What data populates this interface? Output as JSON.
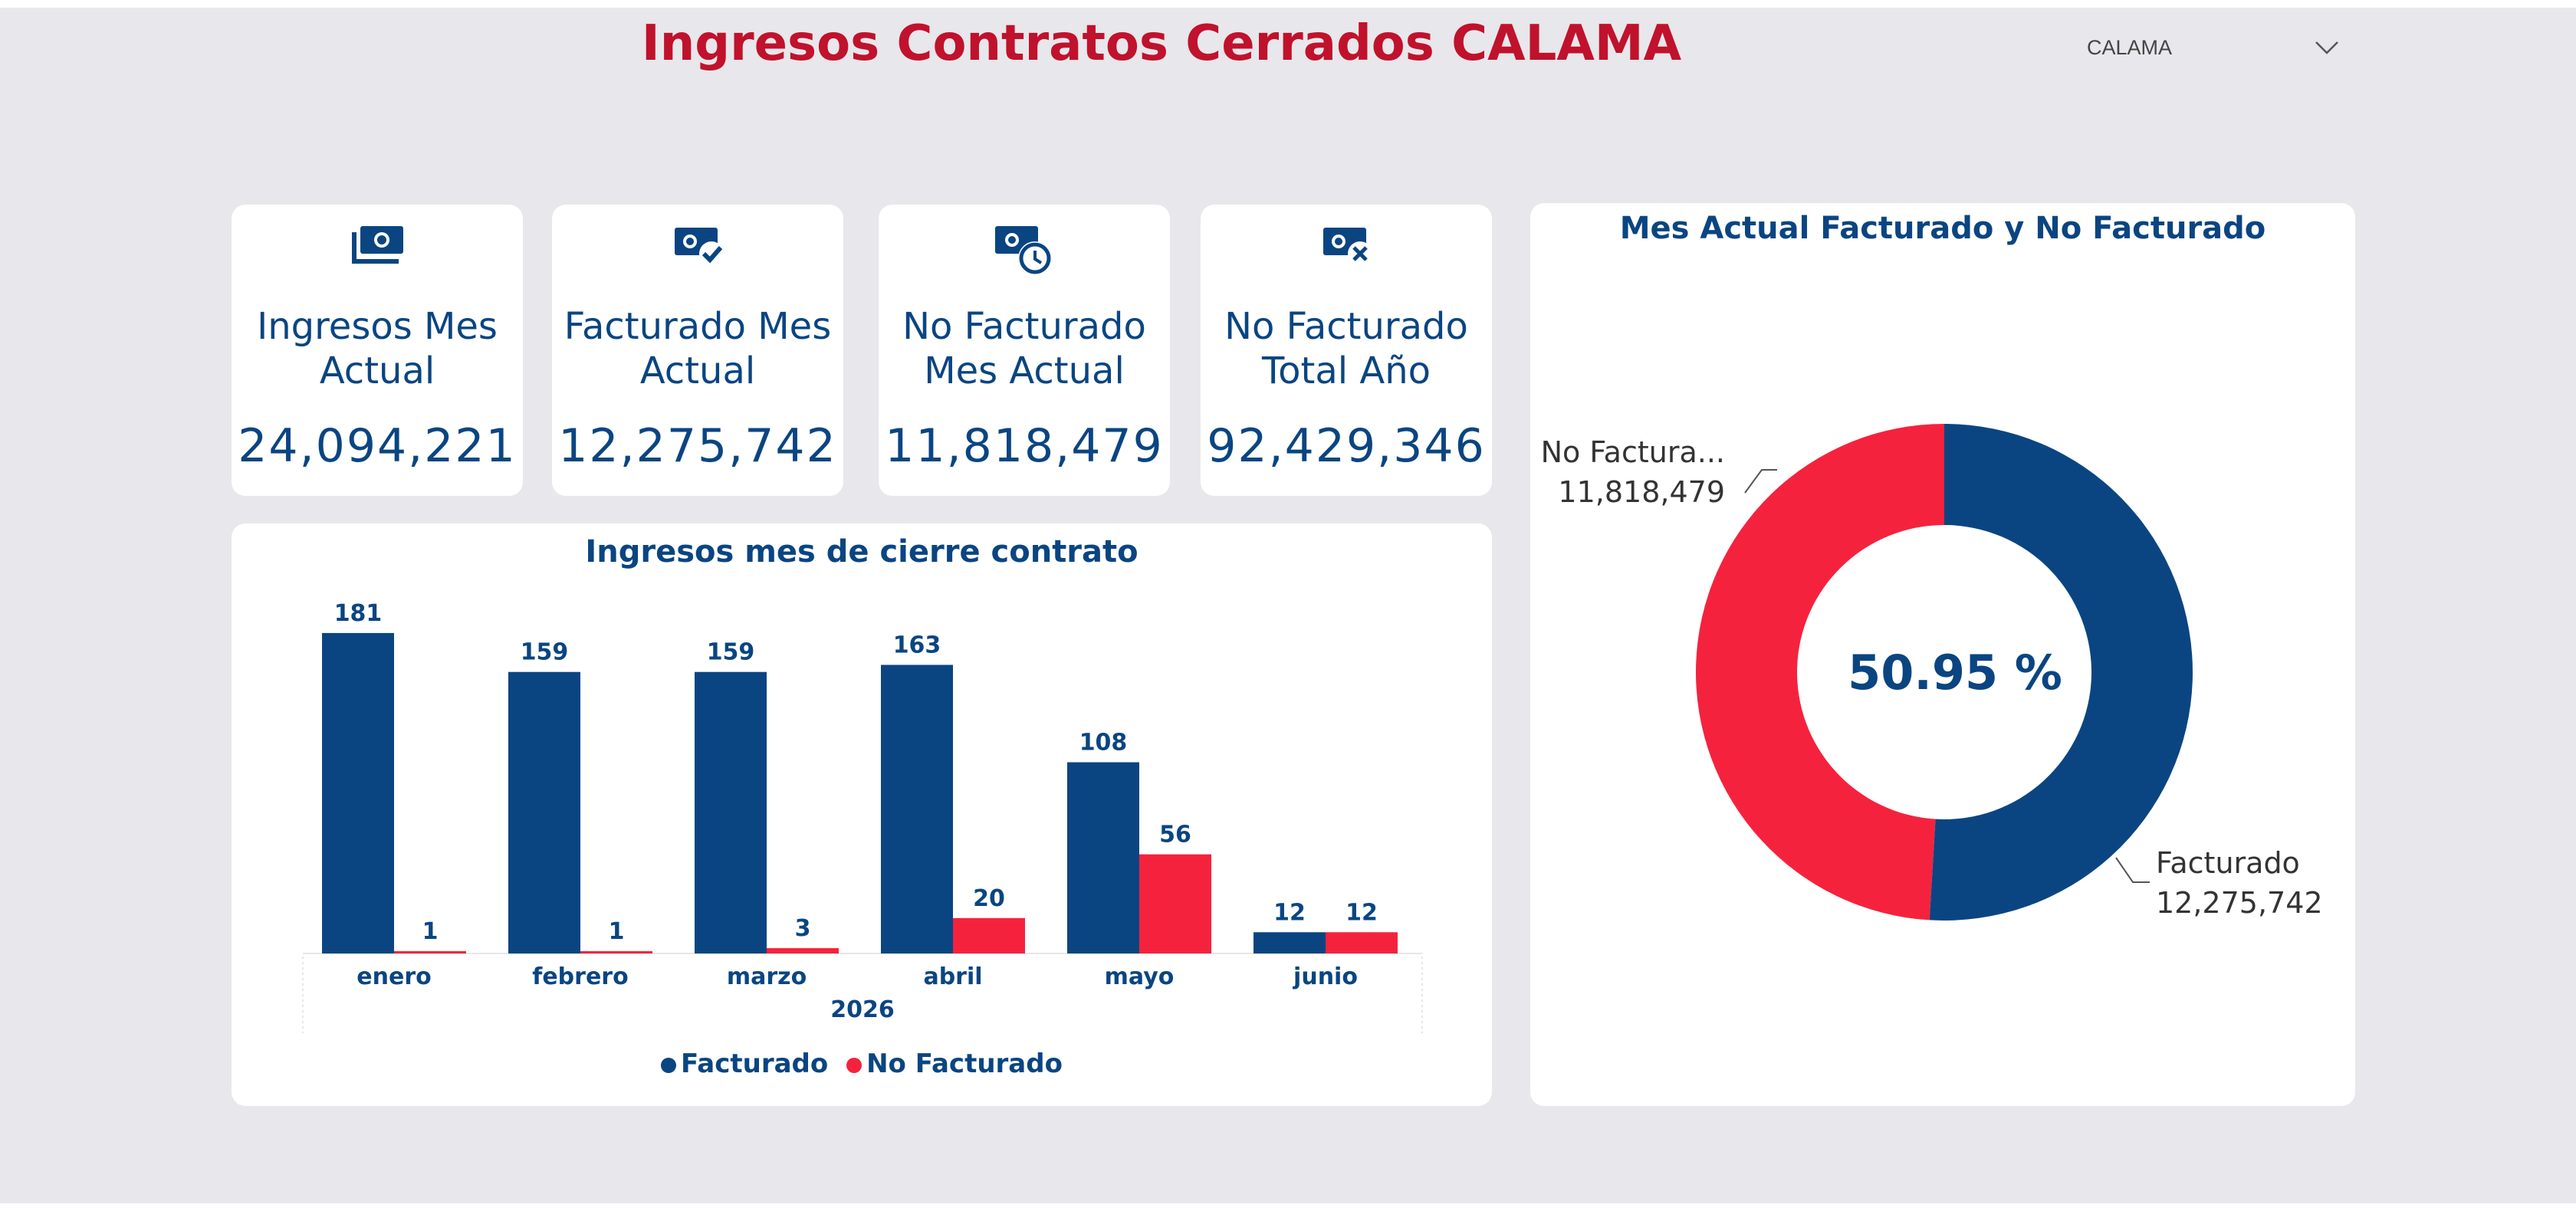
{
  "header": {
    "title": "Ingresos Contratos Cerrados  CALAMA",
    "slicer_value": "CALAMA"
  },
  "kpis": [
    {
      "icon": "money-stack-icon",
      "label": "Ingresos Mes Actual",
      "value": "24,094,221"
    },
    {
      "icon": "money-check-icon",
      "label": "Facturado Mes Actual",
      "value": "12,275,742"
    },
    {
      "icon": "money-clock-icon",
      "label": "No Facturado Mes Actual",
      "value": "11,818,479"
    },
    {
      "icon": "money-x-icon",
      "label": "No Facturado Total Año",
      "value": "92,429,346"
    }
  ],
  "bar_chart": {
    "title": "Ingresos mes de cierre contrato",
    "year_label": "2026",
    "legend": [
      "Facturado",
      "No Facturado"
    ]
  },
  "donut_chart": {
    "title": "Mes Actual Facturado y No Facturado",
    "center_label": "50.95 %",
    "label_no_facturado_name": "No Factura...",
    "label_no_facturado_value": "11,818,479",
    "label_facturado_name": "Facturado",
    "label_facturado_value": "12,275,742"
  },
  "colors": {
    "facturado": "#0a4582",
    "no_facturado": "#f5223e",
    "title": "#c0122c",
    "background": "#e8e7eb"
  },
  "chart_data": [
    {
      "type": "bar",
      "title": "Ingresos mes de cierre contrato",
      "categories": [
        "enero",
        "febrero",
        "marzo",
        "abril",
        "mayo",
        "junio"
      ],
      "xlabel": "2026",
      "series": [
        {
          "name": "Facturado",
          "values": [
            181,
            159,
            159,
            163,
            108,
            12
          ]
        },
        {
          "name": "No Facturado",
          "values": [
            1,
            1,
            3,
            20,
            56,
            12
          ]
        }
      ],
      "legend": "bottom"
    },
    {
      "type": "pie",
      "title": "Mes Actual Facturado y No Facturado",
      "labels": [
        "Facturado",
        "No Facturado"
      ],
      "values": [
        12275742,
        11818479
      ],
      "center_text": "50.95 %"
    }
  ]
}
